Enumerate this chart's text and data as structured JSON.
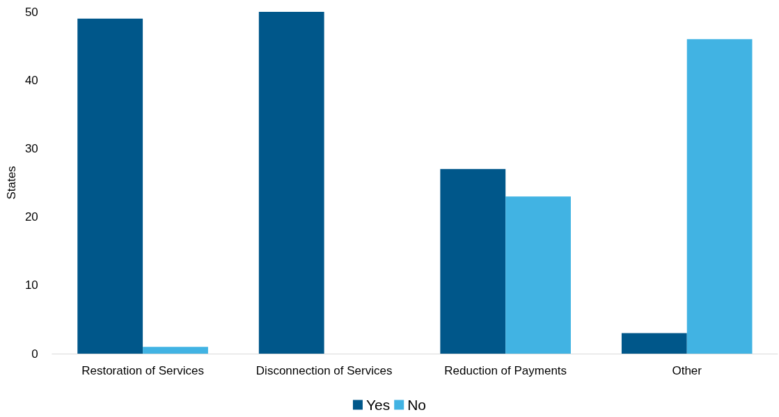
{
  "chart_data": {
    "type": "bar",
    "ylabel": "States",
    "categories": [
      "Restoration of Services",
      "Disconnection of Services",
      "Reduction of Payments",
      "Other"
    ],
    "series": [
      {
        "name": "Yes",
        "color": "#00578a",
        "values": [
          49,
          50,
          27,
          3
        ]
      },
      {
        "name": "No",
        "color": "#41b3e3",
        "values": [
          1,
          0,
          23,
          46
        ]
      }
    ],
    "ylim": [
      0,
      50
    ],
    "yticks": [
      0,
      10,
      20,
      30,
      40,
      50
    ],
    "grid": false,
    "legend": "bottom"
  }
}
